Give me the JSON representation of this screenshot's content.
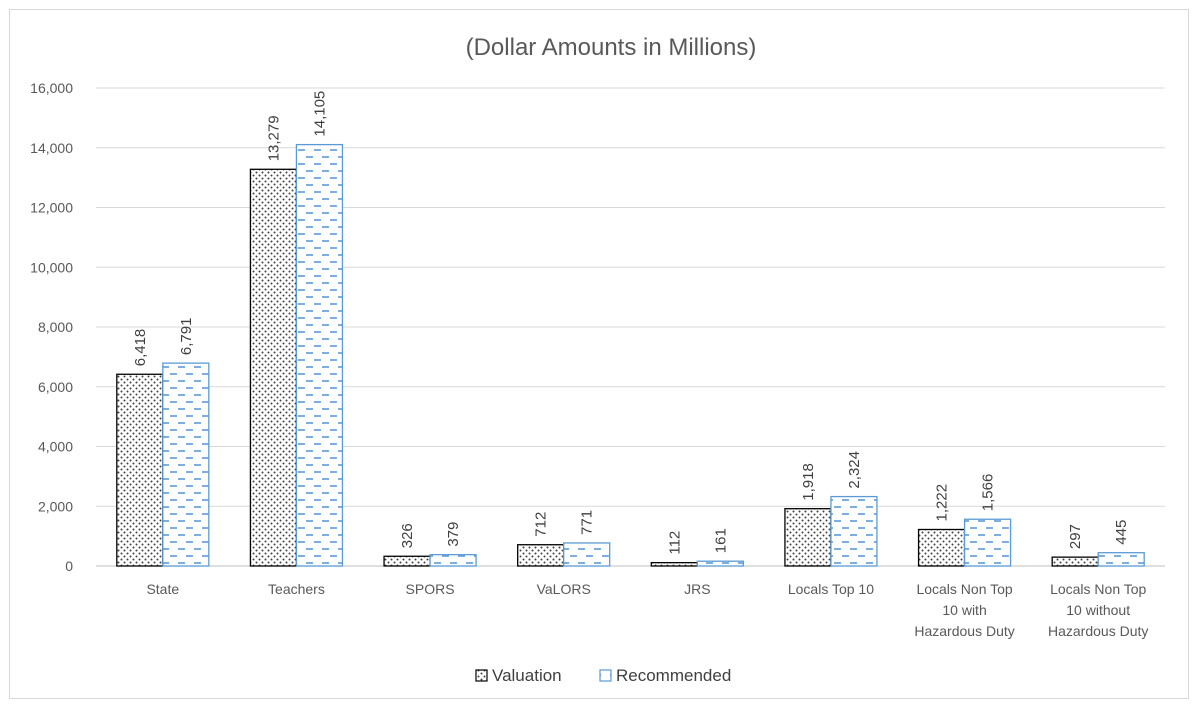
{
  "chart_data": {
    "type": "bar",
    "title": "(Dollar Amounts in Millions)",
    "xlabel": "",
    "ylabel": "",
    "ylim": [
      0,
      16000
    ],
    "yticks": [
      0,
      2000,
      4000,
      6000,
      8000,
      10000,
      12000,
      14000,
      16000
    ],
    "ytick_labels": [
      "0",
      "2,000",
      "4,000",
      "6,000",
      "8,000",
      "10,000",
      "12,000",
      "14,000",
      "16,000"
    ],
    "grid": true,
    "legend_position": "bottom",
    "categories": [
      [
        "State"
      ],
      [
        "Teachers"
      ],
      [
        "SPORS"
      ],
      [
        "VaLORS"
      ],
      [
        "JRS"
      ],
      [
        "Locals Top 10"
      ],
      [
        "Locals Non Top",
        "10 with",
        "Hazardous Duty"
      ],
      [
        "Locals Non Top",
        "10 without",
        "Hazardous Duty"
      ]
    ],
    "series": [
      {
        "name": "Valuation",
        "values": [
          6418,
          13279,
          326,
          712,
          112,
          1918,
          1222,
          297
        ],
        "labels": [
          "6,418",
          "13,279",
          "326",
          "712",
          "112",
          "1,918",
          "1,222",
          "297"
        ],
        "color": "#000000",
        "pattern": "dotted"
      },
      {
        "name": "Recommended",
        "values": [
          6791,
          14105,
          379,
          771,
          161,
          2324,
          1566,
          445
        ],
        "labels": [
          "6,791",
          "14,105",
          "379",
          "771",
          "161",
          "2,324",
          "1,566",
          "445"
        ],
        "color": "#5b9bd5",
        "pattern": "dashed-horizontal"
      }
    ]
  }
}
